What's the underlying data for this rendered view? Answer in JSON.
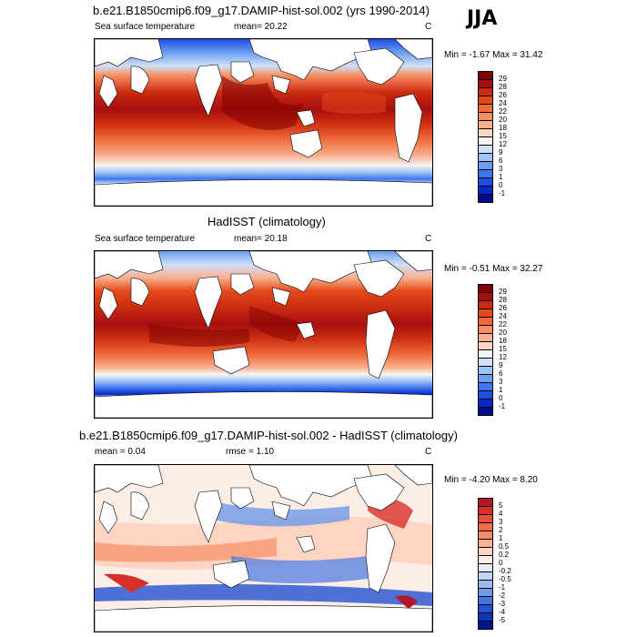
{
  "season": "JJA",
  "panels": [
    {
      "title": "b.e21.B1850cmip6.f09_g17.DAMIP-hist-sol.002 (yrs 1990-2014)",
      "variable": "Sea surface temperature",
      "stat": "mean=  20.22",
      "units": "C",
      "minmax": "Min =  -1.67 Max =  31.42",
      "colorbar": {
        "labels": [
          "29",
          "28",
          "26",
          "24",
          "22",
          "20",
          "18",
          "15",
          "12",
          "9",
          "6",
          "3",
          "1",
          "0",
          "-1"
        ],
        "colors": [
          "#7f0000",
          "#a50f0f",
          "#cb2b10",
          "#e34a1a",
          "#f06a3a",
          "#f88d5f",
          "#fbb090",
          "#fdd6c0",
          "#f4f4f4",
          "#cfe0f7",
          "#9fc3f3",
          "#6b9ef0",
          "#3f76ef",
          "#1c4ee6",
          "#0a28c8",
          "#000c8a"
        ]
      }
    },
    {
      "title": "HadISST (climatology)",
      "variable": "Sea surface temperature",
      "stat": "mean=  20.18",
      "units": "C",
      "minmax": "Min =  -0.51 Max =  32.27",
      "colorbar": {
        "labels": [
          "29",
          "28",
          "26",
          "24",
          "22",
          "20",
          "18",
          "15",
          "12",
          "9",
          "6",
          "3",
          "1",
          "0",
          "-1"
        ],
        "colors": [
          "#7f0000",
          "#a50f0f",
          "#cb2b10",
          "#e34a1a",
          "#f06a3a",
          "#f88d5f",
          "#fbb090",
          "#fdd6c0",
          "#f4f4f4",
          "#cfe0f7",
          "#9fc3f3",
          "#6b9ef0",
          "#3f76ef",
          "#1c4ee6",
          "#0a28c8",
          "#000c8a"
        ]
      }
    },
    {
      "title": "b.e21.B1850cmip6.f09_g17.DAMIP-hist-sol.002 - HadISST (climatology)",
      "variable": "mean =   0.04",
      "stat": "rmse =   1.10",
      "units": "C",
      "minmax": "Min =  -4.20 Max =   8.20",
      "colorbar": {
        "labels": [
          "5",
          "4",
          "3",
          "2",
          "1",
          "0.5",
          "0.2",
          "0",
          "-0.2",
          "-0.5",
          "-1",
          "-2",
          "-3",
          "-4",
          "-5"
        ],
        "colors": [
          "#b2182b",
          "#d73027",
          "#e8503a",
          "#f46d43",
          "#f88d68",
          "#fbb296",
          "#fdd5c2",
          "#fbeee6",
          "#e4ecf8",
          "#c2d4f4",
          "#9bbaf0",
          "#6f9ae9",
          "#4677e0",
          "#2451d2",
          "#1036b8",
          "#08158a"
        ]
      }
    }
  ]
}
